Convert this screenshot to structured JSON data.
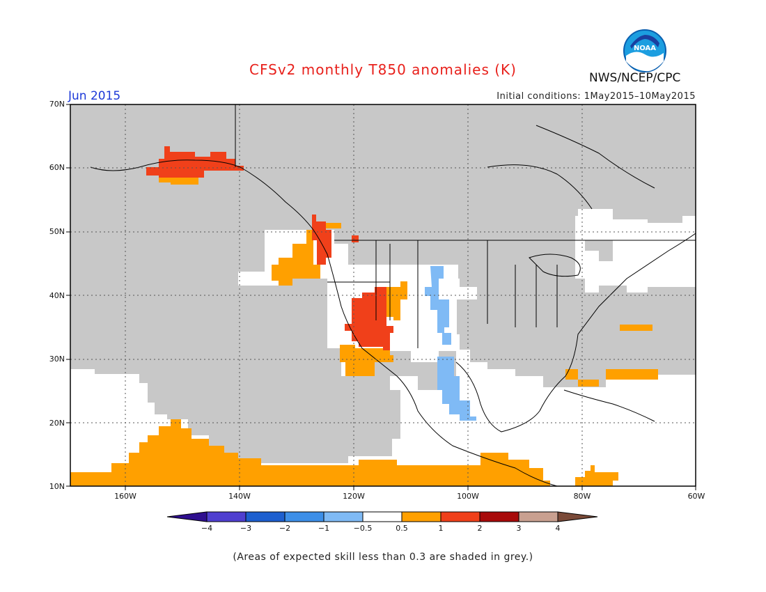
{
  "title": "CFSv2 monthly T850 anomalies (K)",
  "forecast_month": "Jun 2015",
  "initial_conditions": "Initial conditions: 1May2015–10May2015",
  "organization": "NWS/NCEP/CPC",
  "logo_text": "NOAA",
  "footnote": "(Areas of expected skill less than 0.3 are shaded in grey.)",
  "map": {
    "lat_ticks": [
      "70N",
      "60N",
      "50N",
      "40N",
      "30N",
      "20N",
      "10N"
    ],
    "lon_ticks": [
      "160W",
      "140W",
      "120W",
      "100W",
      "80W",
      "60W"
    ],
    "lon_range": [
      -170,
      -60
    ],
    "lat_range": [
      10,
      70
    ],
    "grid": true,
    "low_skill_color": "#c8c8c8"
  },
  "colorbar": {
    "labels": [
      "−4",
      "−3",
      "−2",
      "−1",
      "−0.5",
      "0.5",
      "1",
      "2",
      "3",
      "4"
    ],
    "colors": [
      "#2f0f8f",
      "#4f3fd0",
      "#1d5fcf",
      "#3d8fe8",
      "#7fbaf5",
      "#ffffff",
      "#ffa000",
      "#f0401a",
      "#a80a0a",
      "#c9a090",
      "#7a4a38"
    ]
  }
}
